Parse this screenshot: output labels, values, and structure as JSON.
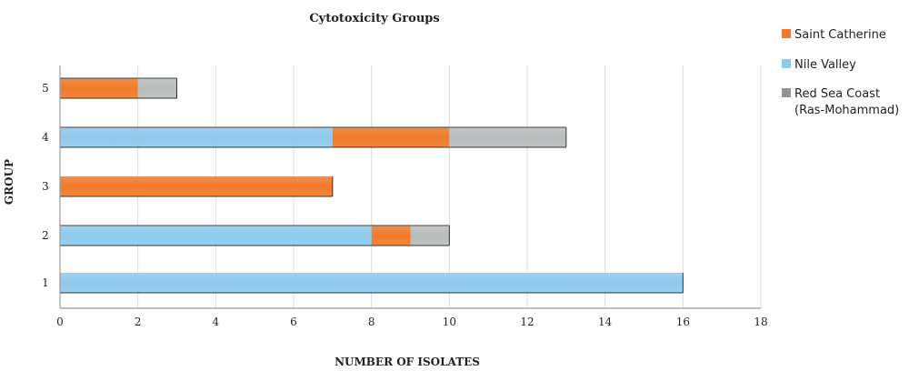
{
  "chart_data": {
    "type": "bar",
    "orientation": "horizontal",
    "stacked": true,
    "title": "Cytotoxicity Groups",
    "xlabel": "NUMBER OF ISOLATES",
    "ylabel": "GROUP",
    "xlim": [
      0,
      18
    ],
    "x_ticks": [
      "0",
      "2",
      "4",
      "6",
      "8",
      "10",
      "12",
      "14",
      "16",
      "18"
    ],
    "categories": [
      "1",
      "2",
      "3",
      "4",
      "5"
    ],
    "series": [
      {
        "name": "Nile Valley",
        "values": [
          16,
          8,
          0,
          7,
          0
        ],
        "color": "#8ec9ee"
      },
      {
        "name": "Saint Catherine",
        "values": [
          0,
          1,
          7,
          3,
          2
        ],
        "color": "#f07a2a"
      },
      {
        "name": "Red Sea Coast (Ras-Mohammad)",
        "values": [
          0,
          1,
          0,
          3,
          1
        ],
        "color": "#b9bcbc"
      }
    ],
    "legend": {
      "placement": "right",
      "entries": [
        {
          "lines": [
            "Saint Catherine"
          ],
          "color": "#f07a2a",
          "icon": "orange-square-icon"
        },
        {
          "lines": [
            "Nile Valley"
          ],
          "color": "#8ec9ee",
          "icon": "blue-square-icon"
        },
        {
          "lines": [
            "Red Sea Coast",
            "(Ras-Mohammad)"
          ],
          "color": "#8f9595",
          "icon": "gray-square-icon"
        }
      ]
    },
    "grid": "vertical"
  }
}
